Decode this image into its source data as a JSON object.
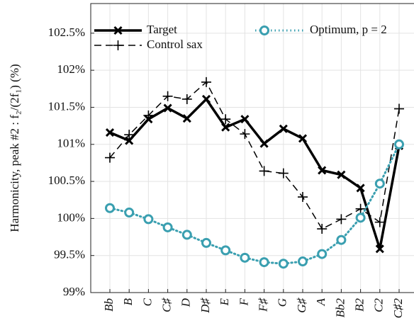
{
  "chart_data": {
    "type": "line",
    "y_label": "Harmonicity, peak #2 : f₂/(2f₁) (%)",
    "categories": [
      "Bb",
      "B",
      "C",
      "C♯",
      "D",
      "D♯",
      "E",
      "F",
      "F♯",
      "G",
      "G♯",
      "A",
      "Bb2",
      "B2",
      "C2",
      "C♯2"
    ],
    "series": [
      {
        "name": "Target",
        "color": "#000000",
        "values": [
          101.16,
          101.05,
          101.34,
          101.49,
          101.35,
          101.61,
          101.23,
          101.34,
          101.01,
          101.21,
          101.08,
          100.65,
          100.59,
          100.41,
          99.59,
          100.98
        ]
      },
      {
        "name": "Control sax",
        "color": "#000000",
        "values": [
          100.82,
          101.13,
          101.39,
          101.65,
          101.61,
          101.84,
          101.34,
          101.14,
          100.64,
          100.61,
          100.29,
          99.86,
          99.99,
          100.13,
          99.95,
          101.48
        ]
      },
      {
        "name": "Optimum, p = 2",
        "color": "#3a9fb0",
        "values": [
          100.14,
          100.08,
          99.99,
          99.88,
          99.78,
          99.67,
          99.57,
          99.47,
          99.41,
          99.39,
          99.42,
          99.52,
          99.71,
          100.01,
          100.47,
          101.0
        ]
      }
    ],
    "ylim": [
      99,
      102.9
    ],
    "yticks": [
      {
        "value": 99,
        "label": "99%"
      },
      {
        "value": 99.5,
        "label": "99.5%"
      },
      {
        "value": 100,
        "label": "100%"
      },
      {
        "value": 100.5,
        "label": "100.5%"
      },
      {
        "value": 101,
        "label": "101%"
      },
      {
        "value": 101.5,
        "label": "101.5%"
      },
      {
        "value": 102,
        "label": "102%"
      },
      {
        "value": 102.5,
        "label": "102.5%"
      }
    ],
    "grid": true,
    "legend": "top"
  }
}
